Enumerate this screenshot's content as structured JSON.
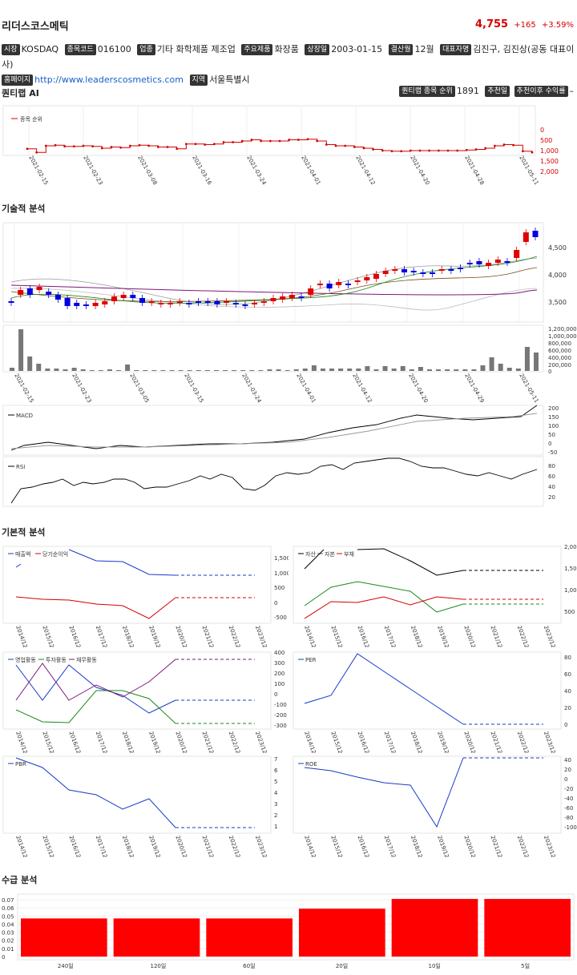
{
  "header": {
    "company": "리더스코스메틱",
    "price": "4,755",
    "change": "+165",
    "change_pct": "+3.59%"
  },
  "info": {
    "market_label": "시장",
    "market": "KOSDAQ",
    "code_label": "종목코드",
    "code": "016100",
    "industry_label": "업종",
    "industry": "기타 화학제품 제조업",
    "product_label": "주요제품",
    "product": "화장품",
    "listed_label": "상장일",
    "listed": "2003-01-15",
    "fiscal_label": "결산월",
    "fiscal": "12월",
    "ceo_label": "대표자명",
    "ceo": "김진구, 김진상(공동 대표이사)",
    "homepage_label": "홈페이지",
    "homepage": "http://www.leaderscosmetics.com",
    "region_label": "지역",
    "region": "서울특별시"
  },
  "quantlab": {
    "title": "퀀티랩 AI",
    "rank_label": "퀀티랩 종목 순위",
    "rank": "1891",
    "rec_label": "추천일",
    "return_label": "추천이후 수익률",
    "return": "–",
    "legend": "종목 순위",
    "y_ticks": [
      "0",
      "500",
      "1,000",
      "1,500",
      "2,000"
    ],
    "x_ticks": [
      "2021-02-15",
      "2021-02-23",
      "2021-03-08",
      "2021-03-16",
      "2021-03-24",
      "2021-04-01",
      "2021-04-12",
      "2021-04-20",
      "2021-04-28",
      "2021-05-11"
    ]
  },
  "technical": {
    "title": "기술적 분석",
    "price_ticks": [
      "4,500",
      "4,000",
      "3,500"
    ],
    "volume_ticks": [
      "1,200,000",
      "1,000,000",
      "800,000",
      "600,000",
      "400,000",
      "200,000",
      "0"
    ],
    "x_ticks": [
      "2021-02-15",
      "2021-02-23",
      "2021-03-05",
      "2021-03-15",
      "2021-03-24",
      "2021-04-01",
      "2021-04-12",
      "2021-04-20",
      "2021-04-29",
      "2021-05-11"
    ],
    "macd_label": "MACD",
    "macd_ticks": [
      "200",
      "150",
      "100",
      "50",
      "0",
      "-50"
    ],
    "rsi_label": "RSI",
    "rsi_ticks": [
      "80",
      "60",
      "40",
      "20"
    ]
  },
  "fundamental": {
    "title": "기본적 분석",
    "years": [
      "2014/12",
      "2015/12",
      "2016/12",
      "2017/12",
      "2018/12",
      "2019/12",
      "2020/12",
      "2021/12",
      "2022/12",
      "2023/12"
    ],
    "chart1": {
      "legend": [
        "매출액",
        "당기순이익"
      ],
      "ticks": [
        "1,500",
        "1,000",
        "500",
        "0",
        "-500"
      ]
    },
    "chart2": {
      "legend": [
        "자산",
        "자본",
        "부채"
      ],
      "ticks": [
        "2,000",
        "1,500",
        "1,000",
        "500"
      ]
    },
    "chart3": {
      "legend": [
        "영업활동",
        "투자활동",
        "재무활동"
      ],
      "ticks": [
        "400",
        "300",
        "200",
        "100",
        "0",
        "-100",
        "-200",
        "-300"
      ]
    },
    "chart4": {
      "legend": [
        "PER"
      ],
      "ticks": [
        "80",
        "60",
        "40",
        "20",
        "0"
      ]
    },
    "chart5": {
      "legend": [
        "PBR"
      ],
      "ticks": [
        "7",
        "6",
        "5",
        "4",
        "3",
        "2",
        "1"
      ]
    },
    "chart6": {
      "legend": [
        "ROE"
      ],
      "ticks": [
        "40",
        "20",
        "0",
        "-20",
        "-40",
        "-60",
        "-80",
        "-100"
      ]
    }
  },
  "supply": {
    "title": "수급 분석",
    "y_ticks": [
      "0.07",
      "0.06",
      "0.05",
      "0.04",
      "0.03",
      "0.02",
      "0.01",
      "0"
    ],
    "color": "#ff0000"
  },
  "chart_data": [
    {
      "type": "line",
      "name_hint": "quantlab-rank",
      "series": [
        {
          "name": "종목 순위",
          "values": [
            1650,
            1950,
            1400,
            1350,
            1450,
            1450,
            1400,
            1450,
            1600,
            1500,
            1550,
            1400,
            1350,
            1400,
            1500,
            1500,
            1650,
            1250,
            1250,
            1300,
            1250,
            1100,
            1100,
            1000,
            900,
            1000,
            1000,
            1000,
            900,
            900,
            850,
            1000,
            1300,
            1400,
            1400,
            1500,
            1600,
            1700,
            1800,
            1850,
            1850,
            1800,
            1800,
            1800,
            1800,
            1800,
            1800,
            1750,
            1700,
            1600,
            1400,
            1300,
            1350,
            1850,
            1950
          ]
        }
      ],
      "ylim": [
        0,
        2000
      ]
    },
    {
      "type": "bar",
      "name_hint": "supply",
      "categories": [
        "240일",
        "120일",
        "60일",
        "20일",
        "10일",
        "5일"
      ],
      "values": [
        0.047,
        0.047,
        0.047,
        0.059,
        0.071,
        0.071
      ],
      "ylim": [
        0,
        0.075
      ]
    }
  ]
}
